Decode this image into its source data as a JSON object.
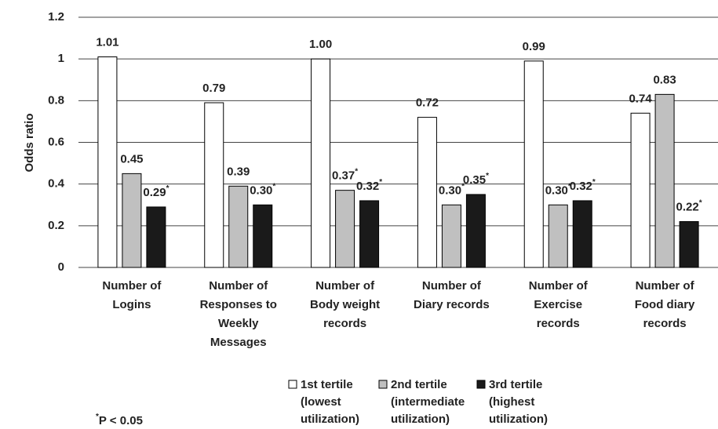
{
  "chart_data": {
    "type": "bar",
    "y_label": "Odds ratio",
    "categories": [
      "Number of\nLogins",
      "Number of\nResponses to\nWeekly\nMessages",
      "Number of\nBody weight\nrecords",
      "Number of\nDiary records",
      "Number of\nExercise\nrecords",
      "Number of\nFood diary\nrecords"
    ],
    "series": [
      {
        "name": "1st tertile\n(lowest\nutilization)",
        "color": "#ffffff",
        "values": [
          1.01,
          0.79,
          1.0,
          0.72,
          0.99,
          0.74
        ],
        "value_labels": [
          "1.01",
          "0.79",
          "1.00",
          "0.72",
          "0.99",
          "0.74"
        ]
      },
      {
        "name": "2nd tertile\n(intermediate\nutilization)",
        "color": "#c0c0c0",
        "values": [
          0.45,
          0.39,
          0.37,
          0.3,
          0.3,
          0.83
        ],
        "value_labels": [
          "0.45",
          "0.39",
          "0.37*",
          "0.30*",
          "0.30*",
          "0.83"
        ]
      },
      {
        "name": "3rd tertile\n(highest\nutilization)",
        "color": "#1a1a1a",
        "values": [
          0.29,
          0.3,
          0.32,
          0.35,
          0.32,
          0.22
        ],
        "value_labels": [
          "0.29*",
          "0.30*",
          "0.32*",
          "0.35*",
          "0.32*",
          "0.22*"
        ]
      }
    ],
    "ylim": [
      0,
      1.2
    ],
    "yticks": [
      0,
      0.2,
      0.4,
      0.6,
      0.8,
      1,
      1.2
    ],
    "grid": true,
    "legend": "bottom",
    "footnote": "*P < 0.05"
  }
}
